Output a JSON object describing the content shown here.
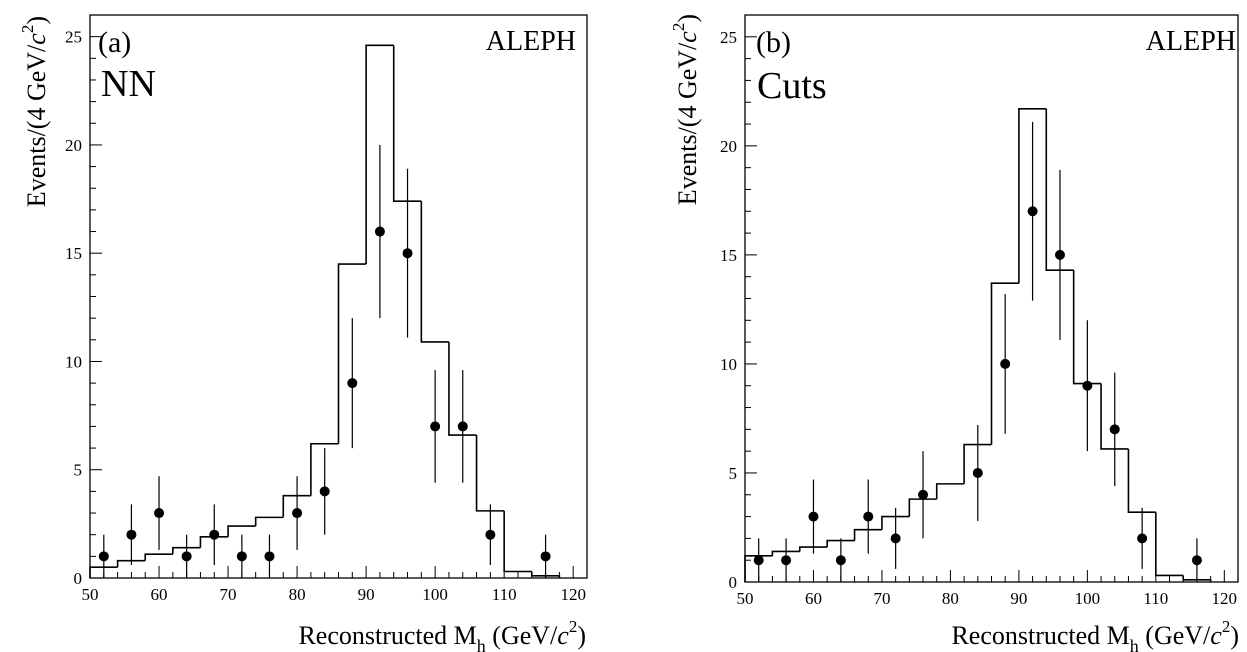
{
  "chart_data": [
    {
      "type": "bar",
      "panel_label": "(a)",
      "experiment": "ALEPH",
      "method": "NN",
      "xlabel": "Reconstructed M",
      "xlabel_sub": "h",
      "xlabel_unit_pre": " (GeV/",
      "xlabel_unit_c": "c",
      "xlabel_unit_sup": "2",
      "xlabel_unit_post": ")",
      "ylabel": "Events/(4 GeV/",
      "ylabel_c": "c",
      "ylabel_sup": "2",
      "ylabel_post": ")",
      "xlim": [
        50,
        122
      ],
      "ylim": [
        0,
        26
      ],
      "xticks": [
        "50",
        "60",
        "70",
        "80",
        "90",
        "100",
        "110",
        "120"
      ],
      "xtick_values": [
        50,
        60,
        70,
        80,
        90,
        100,
        110,
        120
      ],
      "yticks": [
        "0",
        "5",
        "10",
        "15",
        "20",
        "25"
      ],
      "ytick_values": [
        0,
        5,
        10,
        15,
        20,
        25
      ],
      "series": [
        {
          "kind": "step-histogram",
          "bin_edges": [
            50,
            54,
            58,
            62,
            66,
            70,
            74,
            78,
            82,
            86,
            90,
            94,
            98,
            102,
            106,
            110,
            114,
            118
          ],
          "values": [
            0.5,
            0.8,
            1.1,
            1.4,
            1.9,
            2.4,
            2.8,
            3.8,
            6.2,
            14.5,
            24.6,
            17.4,
            10.9,
            6.6,
            3.1,
            0.3,
            0.1
          ]
        },
        {
          "kind": "data-points",
          "x": [
            52,
            56,
            60,
            64,
            68,
            72,
            76,
            80,
            84,
            88,
            92,
            96,
            100,
            104,
            108,
            116
          ],
          "y": [
            1,
            2,
            3,
            1,
            2,
            1,
            1,
            3,
            4,
            9,
            16,
            15,
            7,
            7,
            2,
            1
          ],
          "err_low": [
            1,
            1.4,
            1.7,
            1,
            1.4,
            1,
            1,
            1.7,
            2,
            3,
            4,
            3.9,
            2.6,
            2.6,
            1.4,
            1
          ],
          "err_high": [
            1,
            1.4,
            1.7,
            1,
            1.4,
            1,
            1,
            1.7,
            2,
            3,
            4,
            3.9,
            2.6,
            2.6,
            1.4,
            1
          ]
        }
      ]
    },
    {
      "type": "bar",
      "panel_label": "(b)",
      "experiment": "ALEPH",
      "method": "Cuts",
      "xlabel": "Reconstructed M",
      "xlabel_sub": "h",
      "xlabel_unit_pre": " (GeV/",
      "xlabel_unit_c": "c",
      "xlabel_unit_sup": "2",
      "xlabel_unit_post": ")",
      "ylabel": "Events/(4 GeV/",
      "ylabel_c": "c",
      "ylabel_sup": "2",
      "ylabel_post": ")",
      "xlim": [
        50,
        122
      ],
      "ylim": [
        0,
        26
      ],
      "xticks": [
        "50",
        "60",
        "70",
        "80",
        "90",
        "100",
        "110",
        "120"
      ],
      "xtick_values": [
        50,
        60,
        70,
        80,
        90,
        100,
        110,
        120
      ],
      "yticks": [
        "0",
        "5",
        "10",
        "15",
        "20",
        "25"
      ],
      "ytick_values": [
        0,
        5,
        10,
        15,
        20,
        25
      ],
      "series": [
        {
          "kind": "step-histogram",
          "bin_edges": [
            50,
            54,
            58,
            62,
            66,
            70,
            74,
            78,
            82,
            86,
            90,
            94,
            98,
            102,
            106,
            110,
            114,
            118
          ],
          "values": [
            1.2,
            1.4,
            1.6,
            1.9,
            2.4,
            3.0,
            3.8,
            4.5,
            6.3,
            13.7,
            21.7,
            14.3,
            9.1,
            6.1,
            3.2,
            0.3,
            0.1
          ]
        },
        {
          "kind": "data-points",
          "x": [
            52,
            56,
            60,
            64,
            68,
            72,
            76,
            84,
            88,
            92,
            96,
            100,
            104,
            108,
            116
          ],
          "y": [
            1,
            1,
            3,
            1,
            3,
            2,
            4,
            5,
            10,
            17,
            15,
            9,
            7,
            2,
            1
          ],
          "err_low": [
            1,
            1,
            1.7,
            1,
            1.7,
            1.4,
            2,
            2.2,
            3.2,
            4.1,
            3.9,
            3,
            2.6,
            1.4,
            1
          ],
          "err_high": [
            1,
            1,
            1.7,
            1,
            1.7,
            1.4,
            2,
            2.2,
            3.2,
            4.1,
            3.9,
            3,
            2.6,
            1.4,
            1
          ]
        }
      ]
    }
  ]
}
